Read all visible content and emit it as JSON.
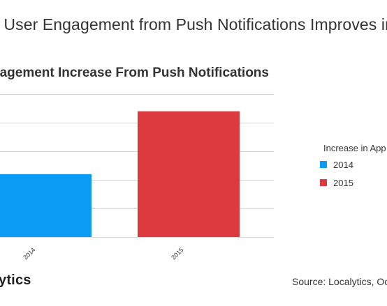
{
  "header": {
    "title": "o User Engagement from Push Notifications Improves in 2"
  },
  "chart_data": {
    "type": "bar",
    "title": "gagement Increase From Push Notifications",
    "xlabel": "",
    "ylabel": "",
    "categories": [
      "2014",
      "2015"
    ],
    "series": [
      {
        "name": "2014",
        "color": "#0a9cf4",
        "values": [
          44,
          null
        ]
      },
      {
        "name": "2015",
        "color": "#dd3a3f",
        "values": [
          null,
          88
        ]
      }
    ],
    "ylim": [
      0,
      100
    ],
    "grid": true,
    "legend": {
      "title": "Increase in App",
      "position": "right",
      "items": [
        {
          "label": "2014",
          "color": "#0a9cf4"
        },
        {
          "label": "2015",
          "color": "#dd3a3f"
        }
      ]
    }
  },
  "footer": {
    "logo_text": "ytics",
    "source": "Source: Localytics, Oc"
  }
}
